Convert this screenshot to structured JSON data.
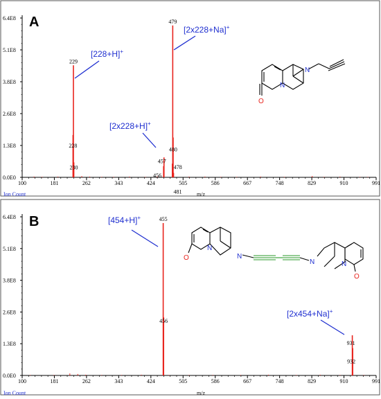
{
  "chart_data": [
    {
      "type": "bar",
      "panel_label": "A",
      "xlabel": "m/z",
      "ylabel": "Ion Count",
      "xlim": [
        100,
        991
      ],
      "ylim": [
        0,
        6.4
      ],
      "x_ticks": [
        "100",
        "181",
        "262",
        "343",
        "424",
        "505",
        "586",
        "667",
        "748",
        "829",
        "910",
        "991"
      ],
      "y_ticks": [
        "0.0E0",
        "1.3E8",
        "2.6E8",
        "3.8E8",
        "5.1E8",
        "6.4E8"
      ],
      "peaks": [
        {
          "mz": 229,
          "intensity": 4.5,
          "label": "229"
        },
        {
          "mz": 228,
          "intensity": 1.7,
          "label": "228"
        },
        {
          "mz": 230,
          "intensity": 0.6,
          "label": "230"
        },
        {
          "mz": 479,
          "intensity": 6.1,
          "label": "479"
        },
        {
          "mz": 480,
          "intensity": 1.6,
          "label": "480"
        },
        {
          "mz": 478,
          "intensity": 0.55,
          "label": "478"
        },
        {
          "mz": 457,
          "intensity": 0.8,
          "label": "457"
        },
        {
          "mz": 456,
          "intensity": 0.45,
          "label": "456"
        },
        {
          "mz": 481,
          "intensity": 0.18,
          "label": "481"
        }
      ],
      "noise": [
        [
          130,
          0.03
        ],
        [
          150,
          0.02
        ],
        [
          190,
          0.03
        ],
        [
          250,
          0.05
        ],
        [
          270,
          0.03
        ],
        [
          300,
          0.02
        ],
        [
          330,
          0.02
        ],
        [
          370,
          0.03
        ],
        [
          410,
          0.02
        ],
        [
          440,
          0.04
        ],
        [
          520,
          0.03
        ],
        [
          560,
          0.03
        ],
        [
          600,
          0.02
        ],
        [
          640,
          0.02
        ],
        [
          700,
          0.03
        ],
        [
          760,
          0.02
        ],
        [
          830,
          0.05
        ],
        [
          860,
          0.02
        ],
        [
          900,
          0.03
        ],
        [
          950,
          0.02
        ],
        [
          970,
          0.02
        ]
      ],
      "annotations": [
        {
          "base": "[228+H]",
          "sup": "+"
        },
        {
          "base": "[2x228+Na]",
          "sup": "+"
        },
        {
          "base": "[2x228+H]",
          "sup": "+"
        }
      ]
    },
    {
      "type": "bar",
      "panel_label": "B",
      "xlabel": "m/z",
      "ylabel": "Ion Count",
      "xlim": [
        100,
        991
      ],
      "ylim": [
        0,
        6.4
      ],
      "x_ticks": [
        "100",
        "181",
        "262",
        "343",
        "424",
        "505",
        "586",
        "667",
        "748",
        "829",
        "910",
        "991"
      ],
      "y_ticks": [
        "0.0E0",
        "1.3E8",
        "2.6E8",
        "3.8E8",
        "5.1E8",
        "6.4E8"
      ],
      "peaks": [
        {
          "mz": 455,
          "intensity": 6.15,
          "label": "455"
        },
        {
          "mz": 456,
          "intensity": 2.35,
          "label": "456"
        },
        {
          "mz": 931,
          "intensity": 1.62,
          "label": "931"
        },
        {
          "mz": 932,
          "intensity": 1.1,
          "label": "932"
        }
      ],
      "noise": [
        [
          120,
          0.02
        ],
        [
          180,
          0.02
        ],
        [
          220,
          0.08
        ],
        [
          240,
          0.06
        ],
        [
          260,
          0.03
        ],
        [
          300,
          0.02
        ],
        [
          350,
          0.02
        ],
        [
          400,
          0.03
        ],
        [
          470,
          0.02
        ],
        [
          520,
          0.02
        ],
        [
          580,
          0.02
        ],
        [
          650,
          0.02
        ],
        [
          720,
          0.03
        ],
        [
          790,
          0.02
        ],
        [
          850,
          0.03
        ],
        [
          900,
          0.02
        ],
        [
          960,
          0.02
        ]
      ],
      "annotations": [
        {
          "base": "[454+H]",
          "sup": "+"
        },
        {
          "base": "[2x454+Na]",
          "sup": "+"
        }
      ]
    }
  ],
  "colors": {
    "peak": "#e8231d",
    "annotation": "#1f2fd0",
    "bond": "#000000",
    "nitrogen": "#1f2fd0",
    "oxygen": "#e8231d",
    "link": "#2a9a2a"
  }
}
